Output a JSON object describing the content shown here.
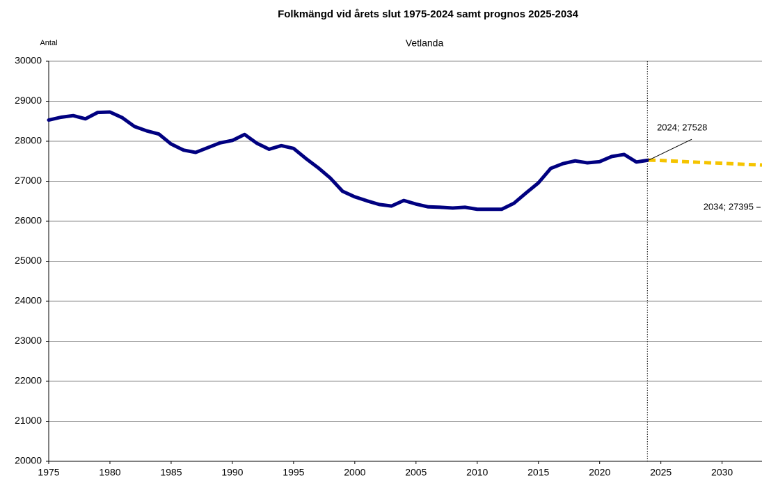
{
  "chart_data": {
    "type": "line",
    "title": "Folkmängd vid årets slut 1975-2024 samt prognos 2025-2034",
    "subtitle": "Vetlanda",
    "y_label": "Antal",
    "series": [
      {
        "color": "#000080",
        "dashed": false,
        "x": [
          1975,
          1976,
          1977,
          1978,
          1979,
          1980,
          1981,
          1982,
          1983,
          1984,
          1985,
          1986,
          1987,
          1988,
          1989,
          1990,
          1991,
          1992,
          1993,
          1994,
          1995,
          1996,
          1997,
          1998,
          1999,
          2000,
          2001,
          2002,
          2003,
          2004,
          2005,
          2006,
          2007,
          2008,
          2009,
          2010,
          2011,
          2012,
          2013,
          2014,
          2015,
          2016,
          2017,
          2018,
          2019,
          2020,
          2021,
          2022,
          2023,
          2024
        ],
        "values": [
          28530,
          28600,
          28640,
          28560,
          28720,
          28730,
          28590,
          28370,
          28260,
          28180,
          27930,
          27780,
          27720,
          27840,
          27960,
          28020,
          28170,
          27950,
          27800,
          27890,
          27820,
          27570,
          27340,
          27080,
          26750,
          26610,
          26510,
          26420,
          26380,
          26520,
          26430,
          26360,
          26350,
          26330,
          26350,
          26300,
          26300,
          26300,
          26450,
          26710,
          26960,
          27320,
          27440,
          27510,
          27460,
          27490,
          27620,
          27670,
          27480,
          27528
        ]
      },
      {
        "color": "#f5c400",
        "dashed": true,
        "x": [
          2024,
          2025,
          2026,
          2027,
          2028,
          2029,
          2030,
          2031,
          2032,
          2033,
          2034
        ],
        "values": [
          27528,
          27520,
          27505,
          27490,
          27475,
          27460,
          27450,
          27435,
          27420,
          27410,
          27395
        ]
      }
    ],
    "annotations": [
      {
        "x": 2024,
        "y": 27528,
        "text": "2024; 27528"
      },
      {
        "x": 2034,
        "y": 27395,
        "text": "2034; 27395"
      }
    ],
    "divider_x": 2023.9,
    "xlim": [
      1975,
      2034
    ],
    "xticks": [
      1975,
      1980,
      1985,
      1990,
      1995,
      2000,
      2005,
      2010,
      2015,
      2020,
      2025,
      2030
    ],
    "ylim": [
      20000,
      30000
    ],
    "yticks": [
      20000,
      21000,
      22000,
      23000,
      24000,
      25000,
      26000,
      27000,
      28000,
      29000,
      30000
    ],
    "grid": true
  }
}
